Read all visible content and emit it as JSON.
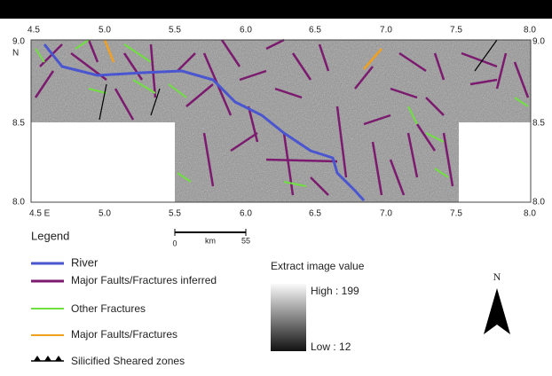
{
  "map": {
    "top_ticks": [
      "4.5",
      "5.0",
      "5.5",
      "6.0",
      "6.5",
      "7.0",
      "7.5",
      "8.0"
    ],
    "bottom_ticks": [
      "4.5 E",
      "5.0",
      "5.5",
      "6.0",
      "6.5",
      "7.0",
      "7.5",
      "8.0"
    ],
    "left_ticks": [
      "9.0",
      "N",
      "8.5",
      "8.0"
    ],
    "right_ticks": [
      "9.0",
      "8.5",
      "8.0"
    ],
    "legend": {
      "title": "Legend",
      "items": [
        "River",
        "Major Faults/Fractures inferred",
        "Other  Fractures",
        "Major Faults/Fractures",
        "Silicified Sheared zones"
      ]
    },
    "scale": {
      "start": "0",
      "unit": "km",
      "end": "55"
    },
    "image_value": {
      "title": "Extract  image value",
      "high": "High : 199",
      "low": "Low : 12"
    },
    "north": "N"
  }
}
